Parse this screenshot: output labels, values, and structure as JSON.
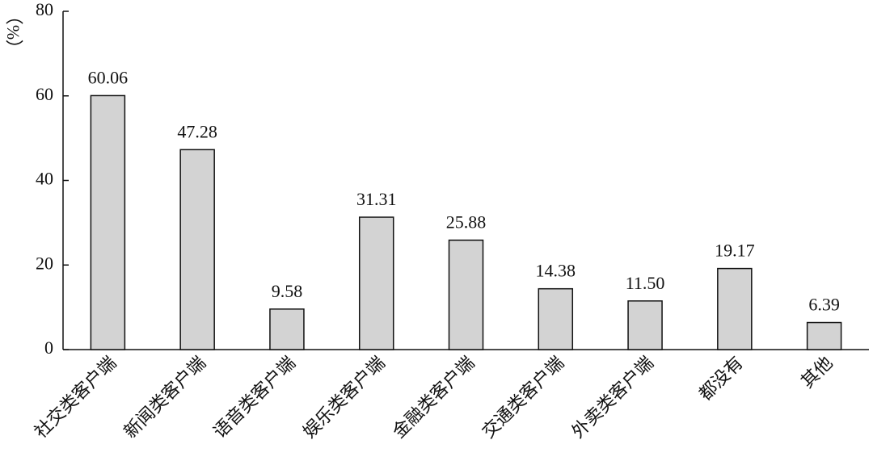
{
  "chart_data": {
    "type": "bar",
    "y_label": "（%）",
    "categories": [
      "社交类客户端",
      "新闻类客户端",
      "语音类客户端",
      "娱乐类客户端",
      "金融类客户端",
      "交通类客户端",
      "外卖类客户端",
      "都没有",
      "其他"
    ],
    "values": [
      60.06,
      47.28,
      9.58,
      31.31,
      25.88,
      14.38,
      11.5,
      19.17,
      6.39
    ],
    "value_labels": [
      "60.06",
      "47.28",
      "9.58",
      "31.31",
      "25.88",
      "14.38",
      "11.50",
      "19.17",
      "6.39"
    ],
    "color": "#d3d3d3",
    "ylim": [
      0,
      80
    ],
    "yticks": [
      0,
      20,
      40,
      60,
      80
    ],
    "grid": false
  }
}
